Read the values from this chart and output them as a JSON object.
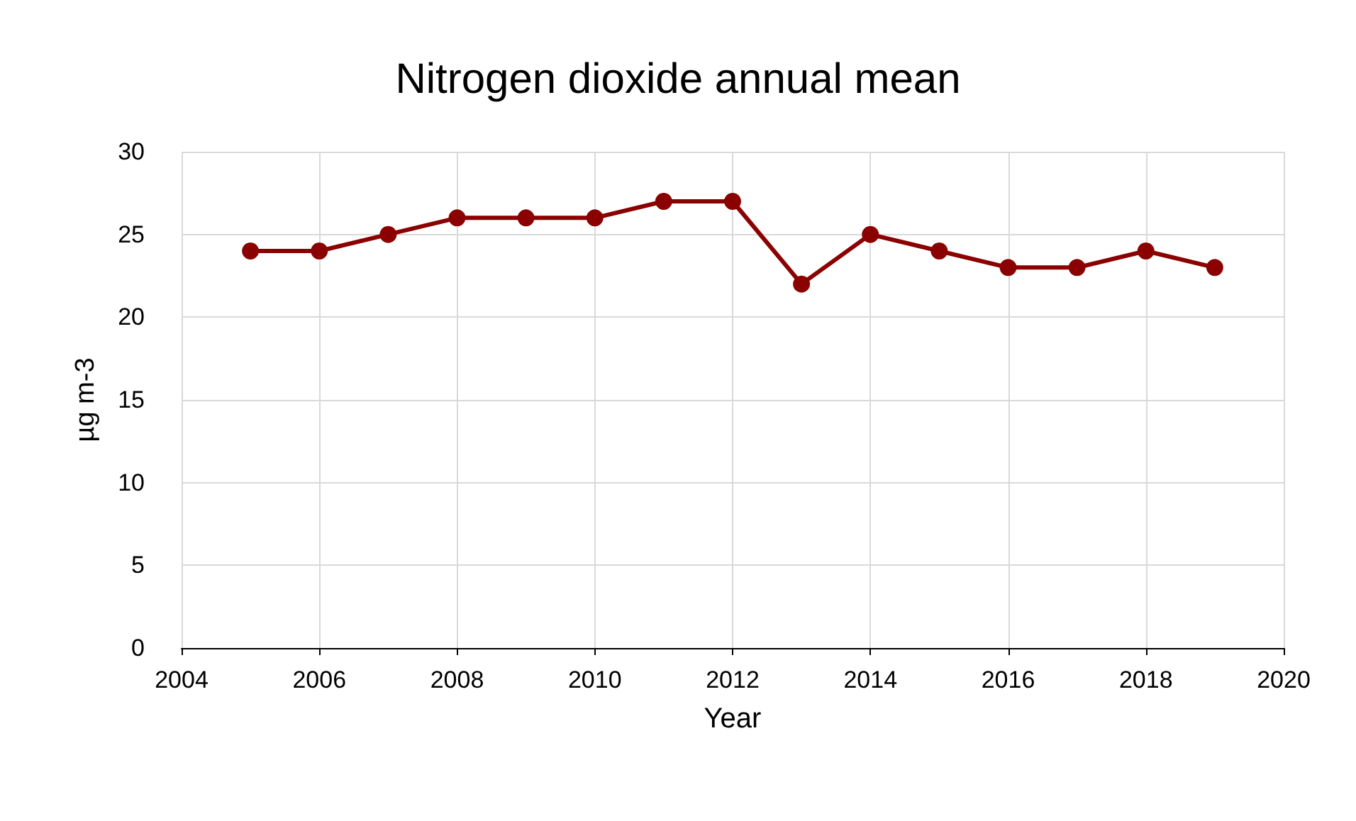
{
  "chart_data": {
    "type": "line",
    "title": "Nitrogen dioxide annual mean",
    "xlabel": "Year",
    "ylabel": "µg m-3",
    "x": [
      2005,
      2006,
      2007,
      2008,
      2009,
      2010,
      2011,
      2012,
      2013,
      2014,
      2015,
      2016,
      2017,
      2018,
      2019
    ],
    "series": [
      {
        "color": "#8b0000",
        "values": [
          24,
          24,
          25,
          26,
          26,
          26,
          27,
          27,
          22,
          25,
          24,
          23,
          23,
          24,
          23
        ]
      }
    ],
    "xlim": [
      2004,
      2020
    ],
    "xticks": [
      2004,
      2006,
      2008,
      2010,
      2012,
      2014,
      2016,
      2018,
      2020
    ],
    "ylim": [
      0,
      30
    ],
    "yticks": [
      0,
      5,
      10,
      15,
      20,
      25,
      30
    ],
    "grid": true,
    "marker": "circle",
    "line_style": "solid"
  }
}
